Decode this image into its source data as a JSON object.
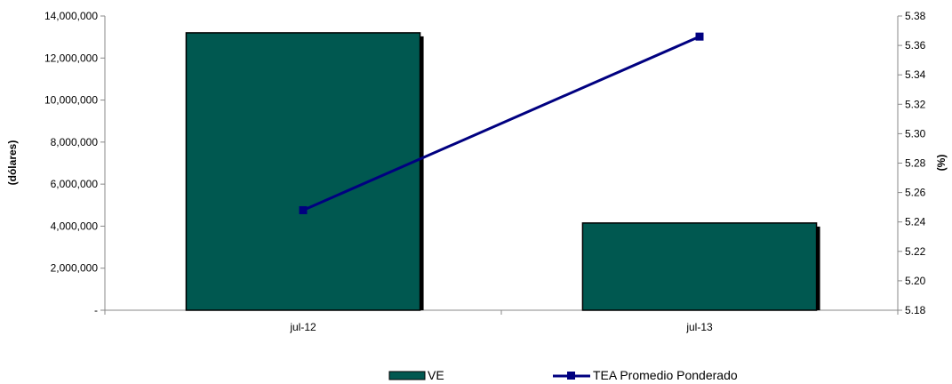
{
  "chart_data": {
    "type": "bar",
    "categories": [
      "jul-12",
      "jul-13"
    ],
    "series": [
      {
        "name": "VE",
        "type": "bar",
        "axis": "left",
        "values": [
          13200000,
          4150000
        ],
        "color": "#005850"
      },
      {
        "name": "TEA Promedio Ponderado",
        "type": "line",
        "axis": "right",
        "values": [
          5.248,
          5.366
        ],
        "color": "#000080"
      }
    ],
    "y_left": {
      "label": "(dólares)",
      "ylim": [
        0,
        14000000
      ],
      "ticks": [
        0,
        2000000,
        4000000,
        6000000,
        8000000,
        10000000,
        12000000,
        14000000
      ],
      "tick_labels": [
        "-",
        "2,000,000",
        "4,000,000",
        "6,000,000",
        "8,000,000",
        "10,000,000",
        "12,000,000",
        "14,000,000"
      ]
    },
    "y_right": {
      "label": "(%)",
      "ylim": [
        5.18,
        5.38
      ],
      "ticks": [
        5.18,
        5.2,
        5.22,
        5.24,
        5.26,
        5.28,
        5.3,
        5.32,
        5.34,
        5.36,
        5.38
      ],
      "tick_labels": [
        "5.18",
        "5.20",
        "5.22",
        "5.24",
        "5.26",
        "5.28",
        "5.30",
        "5.32",
        "5.34",
        "5.36",
        "5.38"
      ]
    },
    "grid": false,
    "legend_position": "bottom"
  }
}
